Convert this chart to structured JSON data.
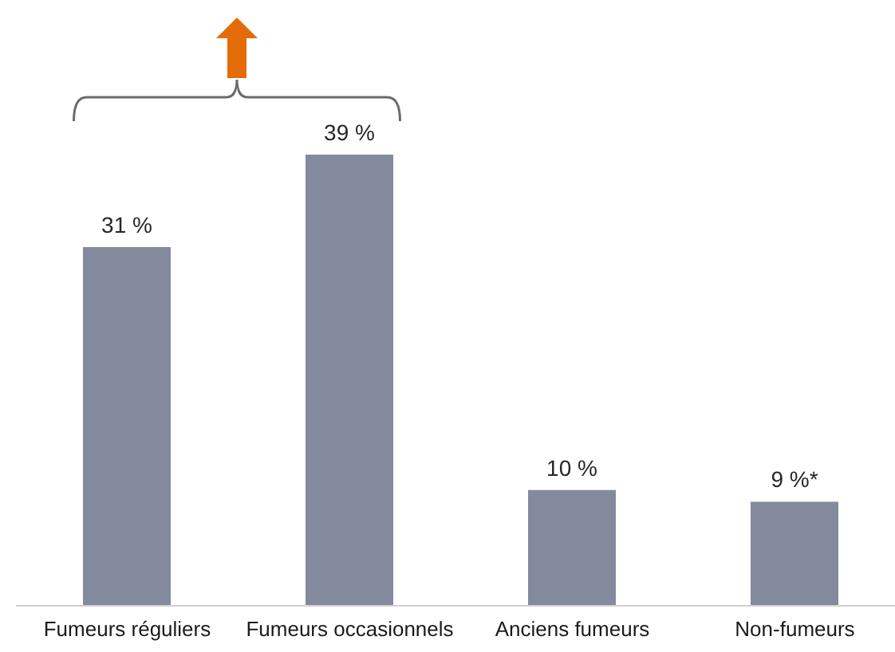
{
  "chart_data": {
    "type": "bar",
    "categories": [
      "Fumeurs réguliers",
      "Fumeurs occasionnels",
      "Anciens fumeurs",
      "Non-fumeurs"
    ],
    "values": [
      31,
      39,
      10,
      9
    ],
    "color": "#838a9e",
    "value_labels": [
      "31 %",
      "39 %",
      "10 %",
      "9 %*"
    ]
  }
}
